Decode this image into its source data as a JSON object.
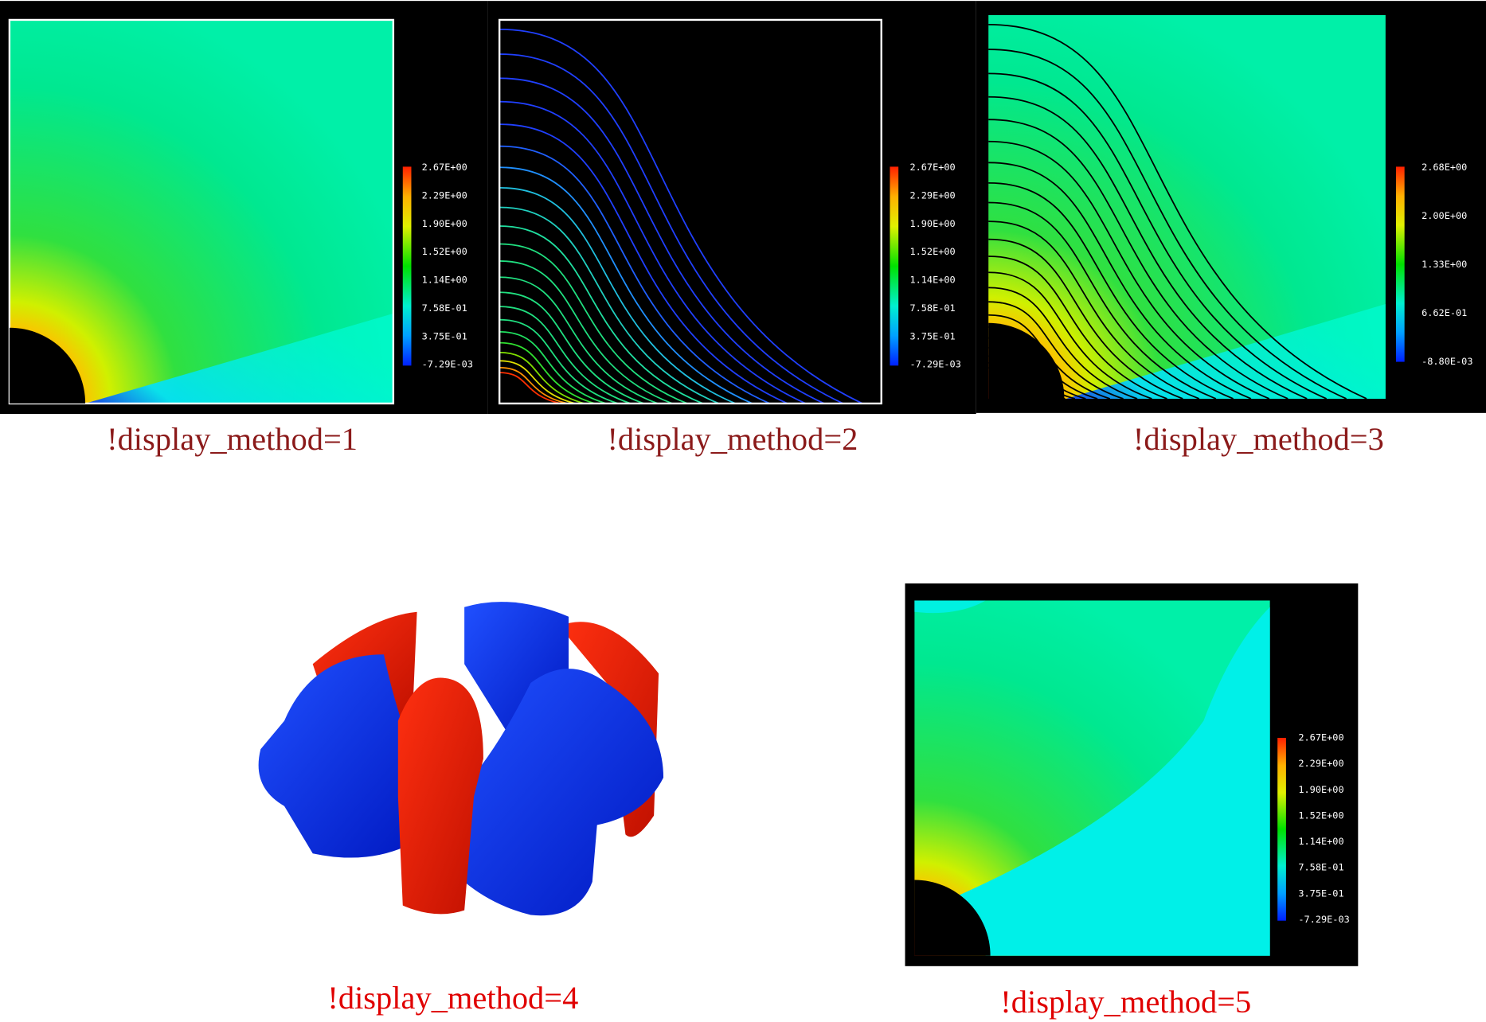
{
  "panels": [
    {
      "caption": "!display_method=1",
      "colorbar": [
        "2.67E+00",
        "2.29E+00",
        "1.90E+00",
        "1.52E+00",
        "1.14E+00",
        "7.58E-01",
        "3.75E-01",
        "-7.29E-03"
      ]
    },
    {
      "caption": "!display_method=2",
      "colorbar": [
        "2.67E+00",
        "2.29E+00",
        "1.90E+00",
        "1.52E+00",
        "1.14E+00",
        "7.58E-01",
        "3.75E-01",
        "-7.29E-03"
      ]
    },
    {
      "caption": "!display_method=3",
      "colorbar": [
        "2.68E+00",
        "2.00E+00",
        "1.33E+00",
        "6.62E-01",
        "-8.80E-03"
      ]
    },
    {
      "caption": "!display_method=4"
    },
    {
      "caption": "!display_method=5",
      "colorbar": [
        "2.67E+00",
        "2.29E+00",
        "1.90E+00",
        "1.52E+00",
        "1.14E+00",
        "7.58E-01",
        "3.75E-01",
        "-7.29E-03"
      ]
    }
  ]
}
